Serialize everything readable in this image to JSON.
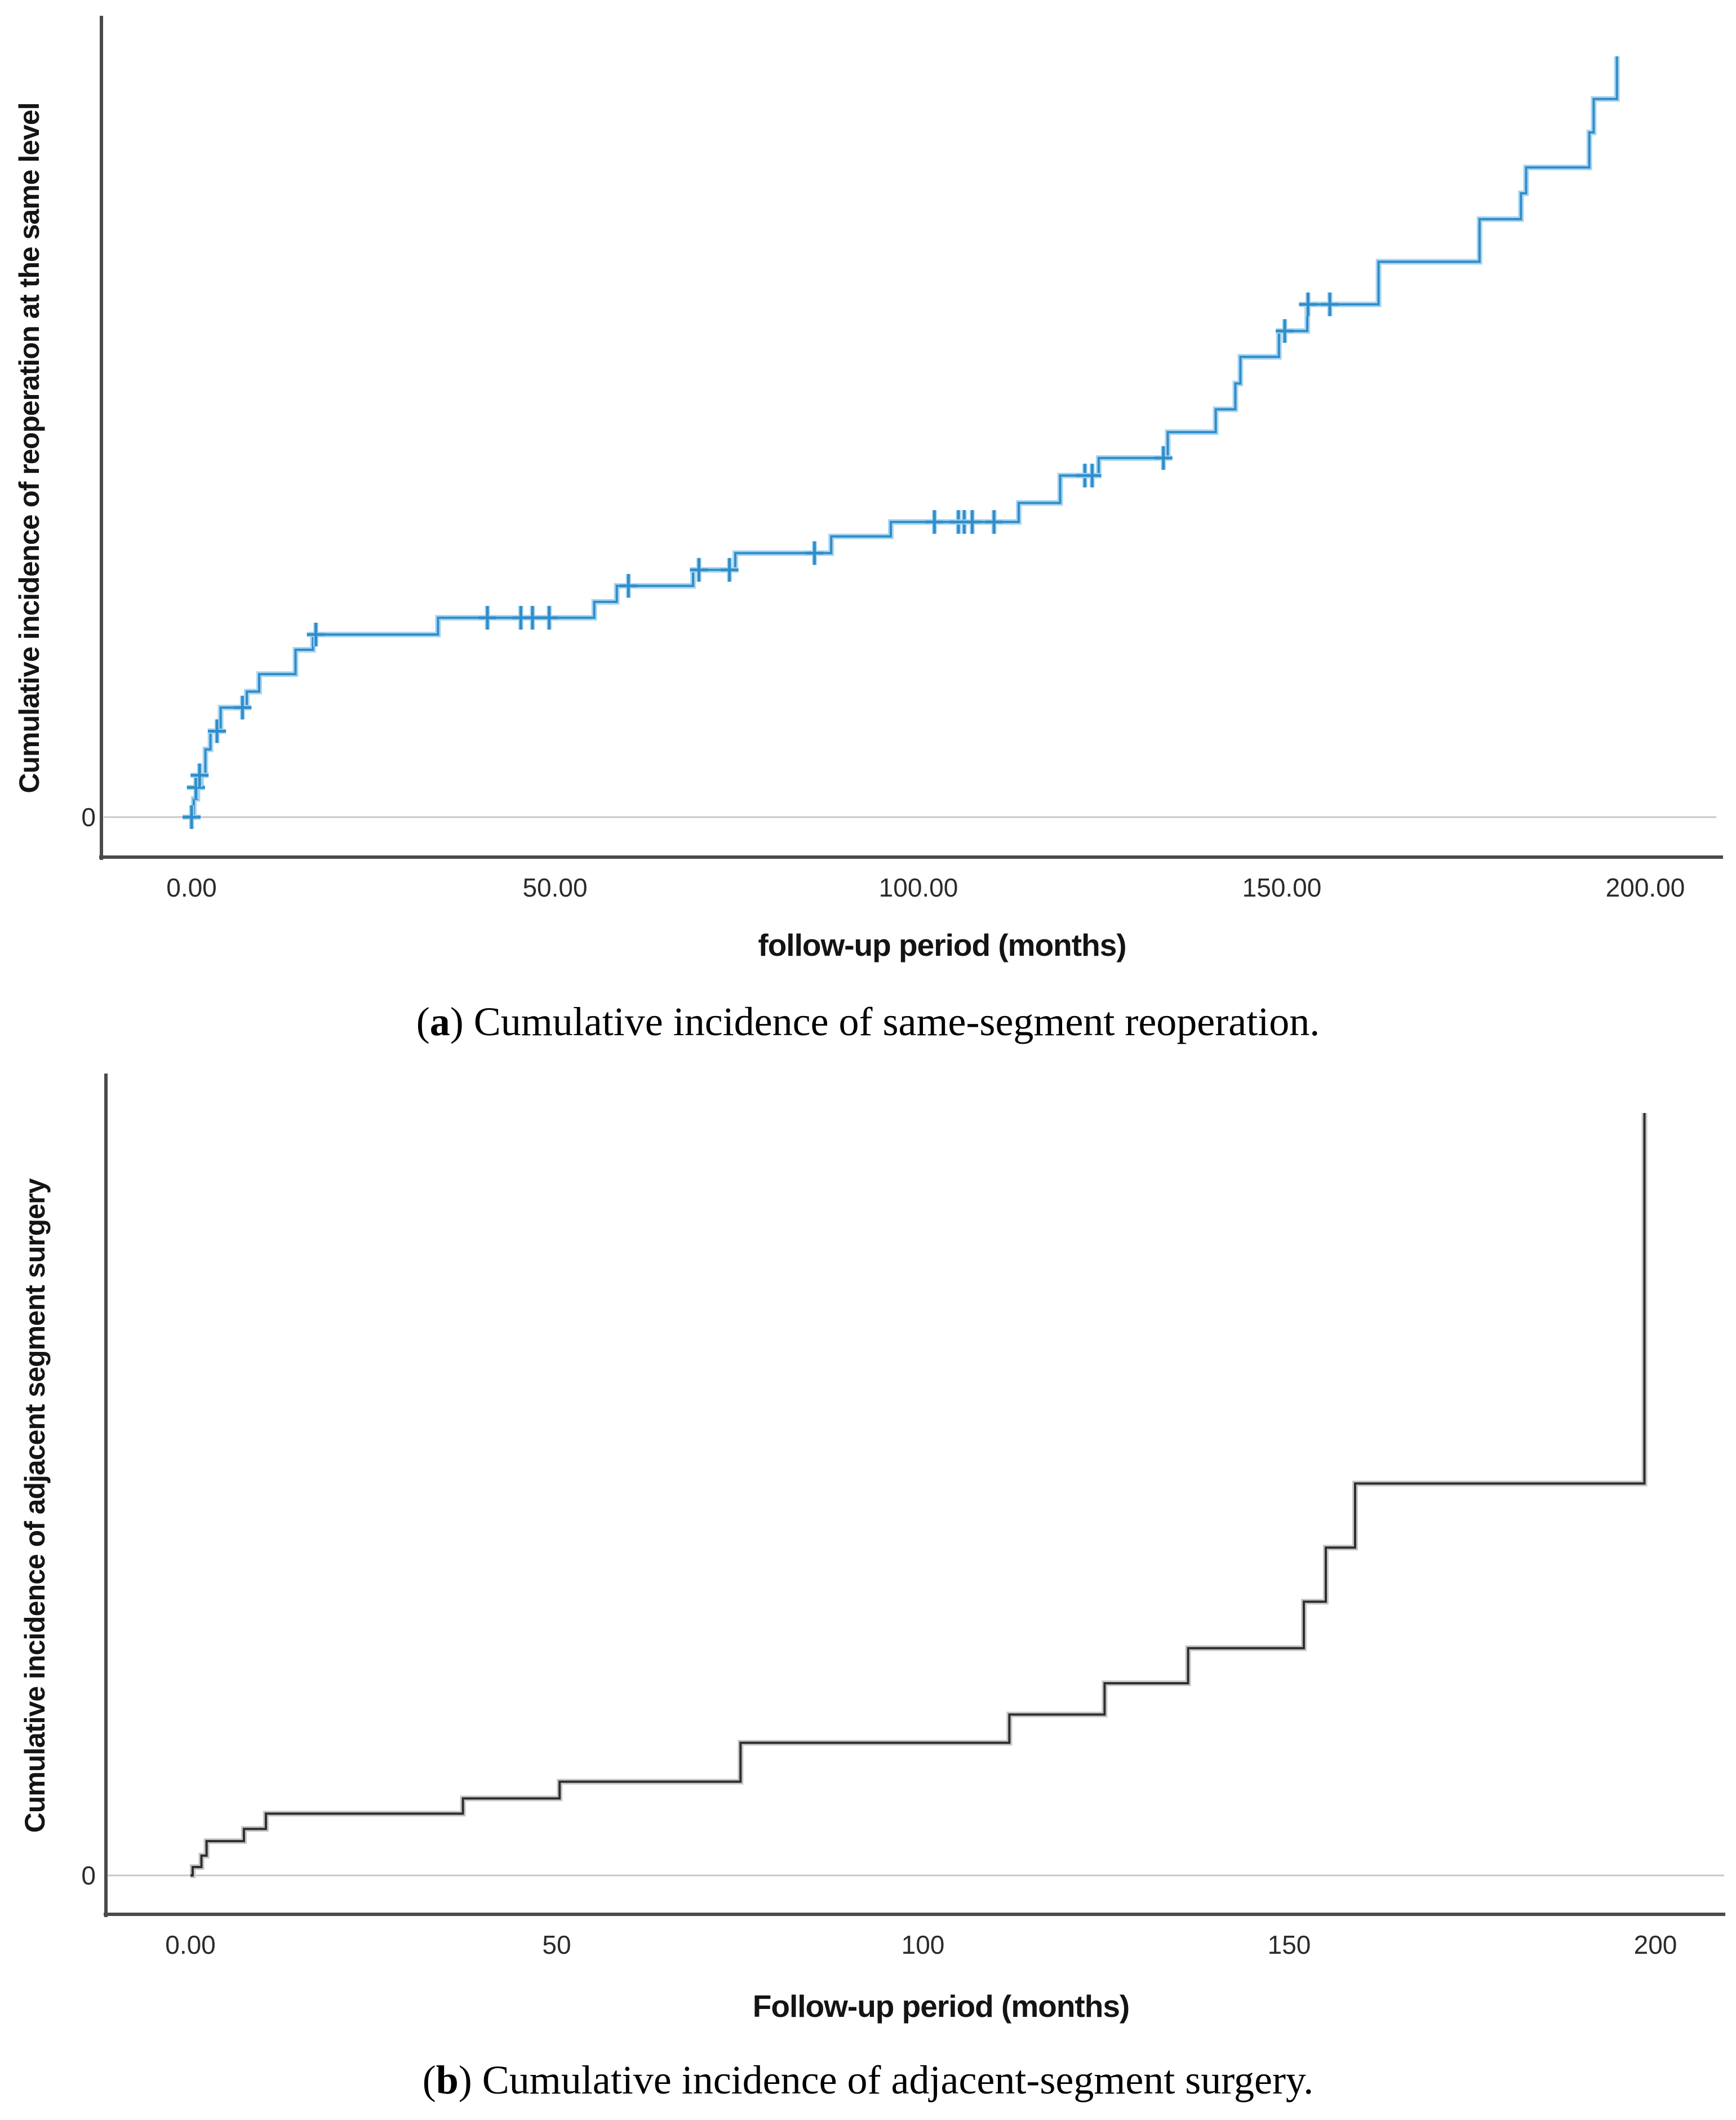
{
  "chart_data": [
    {
      "id": "a",
      "type": "step",
      "title": "",
      "ylabel": "Cumulative incidence of reoperation at the same level",
      "xlabel": "follow-up period (months)",
      "y_zero_tick": "0",
      "xlim": [
        0,
        200
      ],
      "ylim_note": "y axis unlabeled except 0; values normalized 0-1 of drawn height",
      "grid": "single horizontal zero line",
      "legend": "none",
      "line_color": "#2f8dcb",
      "halo_color": "#aad5f0",
      "axis_color": "#4a4a4a",
      "grid_color": "#c8c8c8",
      "xticks": [
        {
          "label": "0.00",
          "value": 0
        },
        {
          "label": "50.00",
          "value": 50
        },
        {
          "label": "100.00",
          "value": 100
        },
        {
          "label": "150.00",
          "value": 150
        },
        {
          "label": "200.00",
          "value": 200
        }
      ],
      "events": [
        [
          0,
          0
        ],
        [
          0.3,
          0.024
        ],
        [
          0.8,
          0.039
        ],
        [
          1.3,
          0.055
        ],
        [
          1.9,
          0.089
        ],
        [
          2.6,
          0.113
        ],
        [
          4,
          0.144
        ],
        [
          7.6,
          0.165
        ],
        [
          9.3,
          0.188
        ],
        [
          14.3,
          0.22
        ],
        [
          16.7,
          0.24
        ],
        [
          33.9,
          0.262
        ],
        [
          55.4,
          0.283
        ],
        [
          58.5,
          0.304
        ],
        [
          69,
          0.325
        ],
        [
          74.8,
          0.347
        ],
        [
          88,
          0.369
        ],
        [
          96.2,
          0.388
        ],
        [
          113.8,
          0.413
        ],
        [
          119.5,
          0.449
        ],
        [
          124.8,
          0.472
        ],
        [
          134.3,
          0.506
        ],
        [
          140.9,
          0.536
        ],
        [
          143.6,
          0.57
        ],
        [
          144.3,
          0.605
        ],
        [
          149.6,
          0.639
        ],
        [
          153.5,
          0.674
        ],
        [
          163.3,
          0.73
        ],
        [
          177.2,
          0.786
        ],
        [
          182.9,
          0.82
        ],
        [
          183.6,
          0.854
        ],
        [
          192.3,
          0.9
        ],
        [
          192.9,
          0.944
        ],
        [
          196.1,
          1
        ]
      ],
      "censors": [
        [
          0,
          0
        ],
        [
          0.6,
          0.039
        ],
        [
          1.1,
          0.055
        ],
        [
          3.5,
          0.113
        ],
        [
          7,
          0.144
        ],
        [
          17.1,
          0.24
        ],
        [
          40.7,
          0.262
        ],
        [
          45.3,
          0.262
        ],
        [
          46.9,
          0.262
        ],
        [
          49.2,
          0.262
        ],
        [
          60.1,
          0.304
        ],
        [
          69.8,
          0.325
        ],
        [
          74,
          0.325
        ],
        [
          85.7,
          0.347
        ],
        [
          102.2,
          0.388
        ],
        [
          105.5,
          0.388
        ],
        [
          106.3,
          0.388
        ],
        [
          107.4,
          0.388
        ],
        [
          110.4,
          0.388
        ],
        [
          122.9,
          0.449
        ],
        [
          123.9,
          0.449
        ],
        [
          133.7,
          0.472
        ],
        [
          150.4,
          0.639
        ],
        [
          153.6,
          0.674
        ],
        [
          156.6,
          0.674
        ]
      ],
      "caption": {
        "open": "(",
        "letter": "a",
        "close": ")",
        "text": " Cumulative incidence of same-segment reoperation."
      }
    },
    {
      "id": "b",
      "type": "step",
      "title": "",
      "ylabel": "Cumulative incidence of adjacent segment surgery",
      "xlabel": "Follow-up period (months)",
      "y_zero_tick": "0",
      "xlim": [
        0,
        200
      ],
      "ylim_note": "y axis unlabeled except 0; values normalized 0-1 of drawn height",
      "grid": "single horizontal zero line",
      "legend": "none",
      "line_color": "#2e2e2e",
      "halo_color": "#c6c6c6",
      "axis_color": "#4a4a4a",
      "grid_color": "#c8c8c8",
      "xticks": [
        {
          "label": "0.00",
          "value": 0
        },
        {
          "label": "50",
          "value": 50
        },
        {
          "label": "100",
          "value": 100
        },
        {
          "label": "150",
          "value": 150
        },
        {
          "label": "200",
          "value": 200
        }
      ],
      "events": [
        [
          0,
          0
        ],
        [
          0.3,
          0.011
        ],
        [
          1.5,
          0.026
        ],
        [
          2.2,
          0.045
        ],
        [
          7.3,
          0.061
        ],
        [
          10.3,
          0.081
        ],
        [
          37.2,
          0.101
        ],
        [
          50.4,
          0.123
        ],
        [
          75.1,
          0.174
        ],
        [
          111.8,
          0.211
        ],
        [
          124.8,
          0.252
        ],
        [
          136.2,
          0.298
        ],
        [
          152,
          0.359
        ],
        [
          155,
          0.43
        ],
        [
          159,
          0.514
        ],
        [
          198.5,
          1
        ]
      ],
      "censors": [],
      "caption": {
        "open": "(",
        "letter": "b",
        "close": ")",
        "text": " Cumulative incidence of adjacent-segment surgery."
      }
    }
  ]
}
